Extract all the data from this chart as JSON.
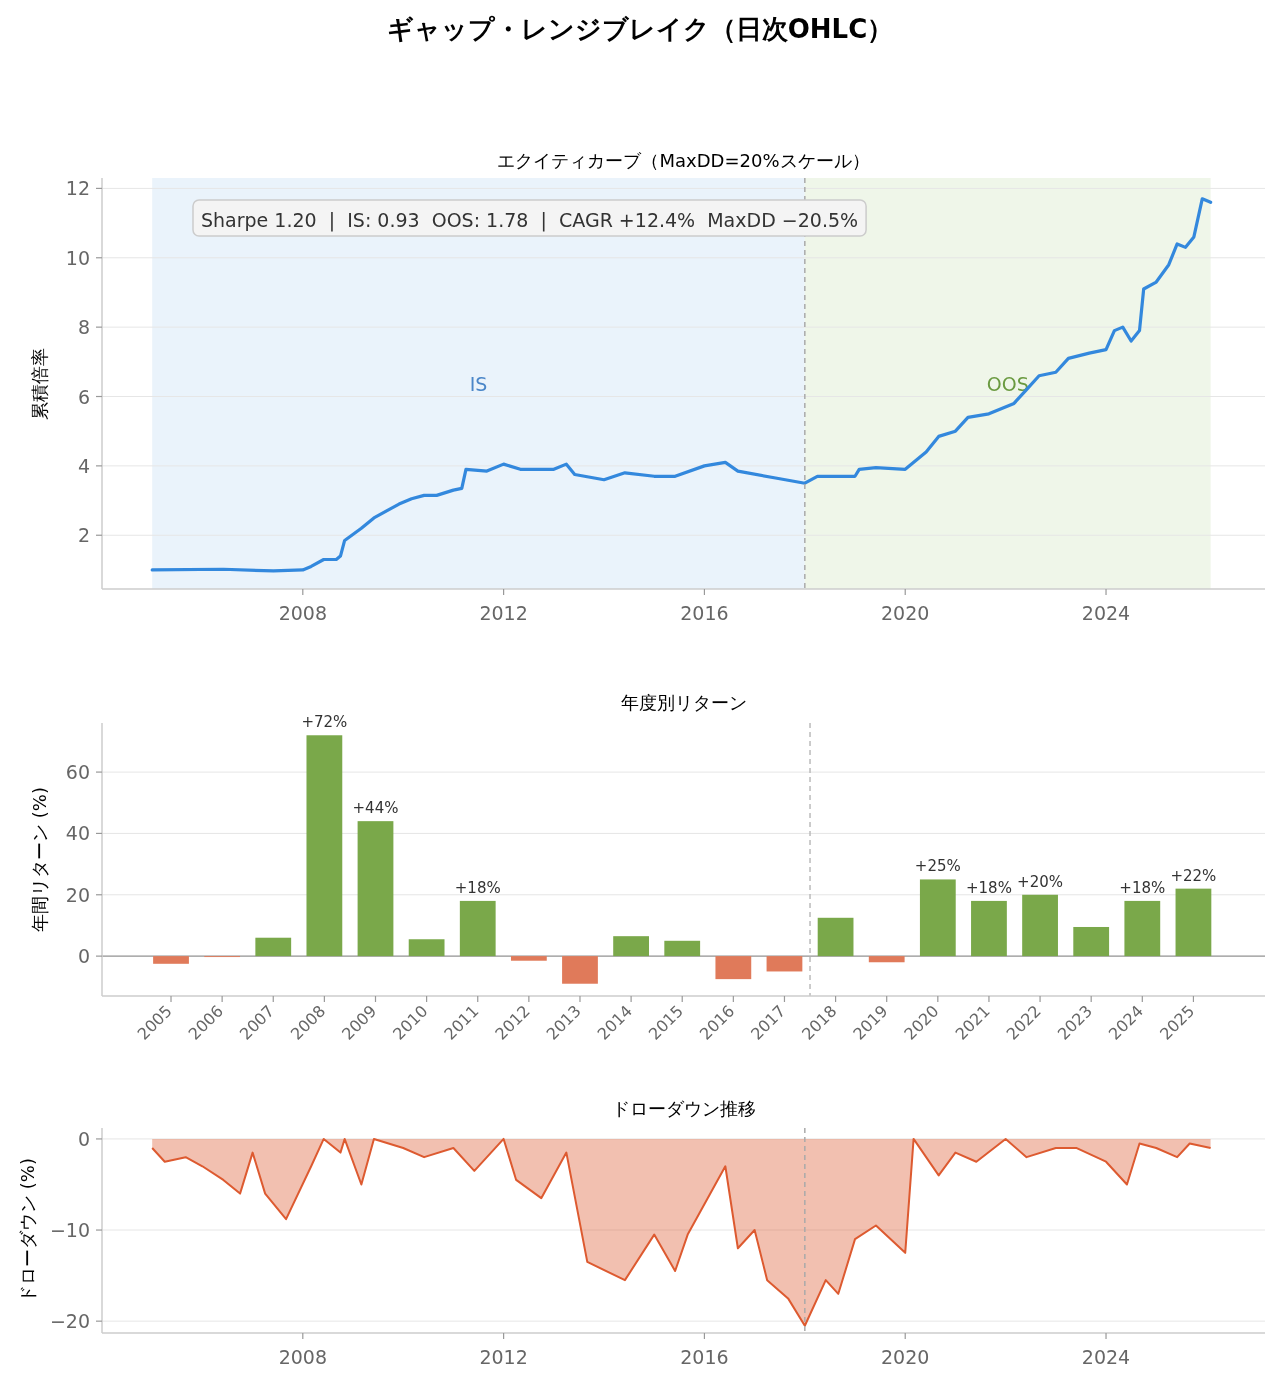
{
  "chart_data": [
    {
      "type": "line",
      "title": "ギャップ・レンジブレイク（日次OHLC）",
      "subtitle": "エクイティカーブ（MaxDD=20%スケール）",
      "ylabel": "累積倍率",
      "x": [
        "2005-01",
        "2006-06",
        "2007-06",
        "2008-01",
        "2008-03",
        "2008-06",
        "2008-09",
        "2008-10",
        "2008-11",
        "2009-03",
        "2009-06",
        "2009-12",
        "2010-03",
        "2010-06",
        "2010-09",
        "2011-01",
        "2011-03",
        "2011-04",
        "2011-09",
        "2012-01",
        "2012-05",
        "2013-01",
        "2013-04",
        "2013-06",
        "2014-01",
        "2014-06",
        "2015-01",
        "2015-06",
        "2016-01",
        "2016-06",
        "2016-09",
        "2017-06",
        "2018-01",
        "2018-04",
        "2018-09",
        "2019-01",
        "2019-02",
        "2019-06",
        "2020-01",
        "2020-06",
        "2020-09",
        "2021-01",
        "2021-04",
        "2021-09",
        "2022-03",
        "2022-06",
        "2022-09",
        "2023-01",
        "2023-04",
        "2023-09",
        "2024-01",
        "2024-03",
        "2024-05",
        "2024-07",
        "2024-09",
        "2024-10",
        "2025-01",
        "2025-04",
        "2025-06",
        "2025-08",
        "2025-10",
        "2025-12",
        "2026-02"
      ],
      "values": [
        1.0,
        1.02,
        0.97,
        1.0,
        1.1,
        1.3,
        1.3,
        1.4,
        1.85,
        2.2,
        2.5,
        2.9,
        3.05,
        3.15,
        3.15,
        3.3,
        3.35,
        3.9,
        3.85,
        4.05,
        3.9,
        3.9,
        4.05,
        3.75,
        3.6,
        3.8,
        3.7,
        3.7,
        4.0,
        4.1,
        3.85,
        3.65,
        3.5,
        3.7,
        3.7,
        3.7,
        3.9,
        3.95,
        3.9,
        4.4,
        4.85,
        5.0,
        5.4,
        5.5,
        5.8,
        6.2,
        6.6,
        6.7,
        7.1,
        7.25,
        7.35,
        7.9,
        8.0,
        7.6,
        7.9,
        9.1,
        9.3,
        9.8,
        10.4,
        10.3,
        10.6,
        11.7,
        11.6
      ],
      "color": "#3388dd",
      "xlim": [
        "2004-01",
        "2027-03"
      ],
      "ylim": [
        0.45,
        12.3
      ],
      "xticks": [
        "2008",
        "2012",
        "2016",
        "2020",
        "2024"
      ],
      "yticks": [
        2,
        4,
        6,
        8,
        10,
        12
      ],
      "grid": "y",
      "bands": [
        {
          "axis": "x",
          "from": "2005-01",
          "to": "2018-01",
          "label": "IS",
          "color": "#eaf3fb"
        },
        {
          "axis": "x",
          "from": "2018-01",
          "to": "2026-02",
          "label": "OOS",
          "color": "#eff6e9"
        }
      ],
      "ref_lines": [
        {
          "axis": "x",
          "value": "2018-01",
          "color": "#aaaaaa",
          "line_style": "dashed"
        }
      ],
      "annotations": [
        "Sharpe 1.20  |  IS: 0.93  OOS: 1.78  |  CAGR +12.4%  MaxDD −20.5%"
      ]
    },
    {
      "type": "bar",
      "title": "年度別リターン",
      "ylabel": "年間リターン (%)",
      "x": [
        2005,
        2006,
        2007,
        2008,
        2009,
        2010,
        2011,
        2012,
        2013,
        2014,
        2015,
        2016,
        2017,
        2018,
        2019,
        2020,
        2021,
        2022,
        2023,
        2024,
        2025
      ],
      "xlim": [
        2003.65,
        2026.4
      ],
      "xticks": [
        2005,
        2006,
        2007,
        2008,
        2009,
        2010,
        2011,
        2012,
        2013,
        2014,
        2015,
        2016,
        2017,
        2018,
        2019,
        2020,
        2021,
        2022,
        2023,
        2024,
        2025
      ],
      "values": [
        -2.5,
        -0.3,
        6,
        72,
        44,
        5.5,
        18,
        -1.5,
        -9,
        6.5,
        5,
        -7.5,
        -5,
        12.5,
        -2,
        25,
        18,
        20,
        9.5,
        18,
        22
      ],
      "colors": [
        "#e07a5a",
        "#e07a5a",
        "#7aa84a",
        "#7aa84a",
        "#7aa84a",
        "#7aa84a",
        "#7aa84a",
        "#e07a5a",
        "#e07a5a",
        "#7aa84a",
        "#7aa84a",
        "#e07a5a",
        "#e07a5a",
        "#7aa84a",
        "#e07a5a",
        "#7aa84a",
        "#7aa84a",
        "#7aa84a",
        "#7aa84a",
        "#7aa84a",
        "#7aa84a"
      ],
      "value_labels": [
        null,
        null,
        null,
        "+72%",
        "+44%",
        null,
        "+18%",
        null,
        null,
        null,
        null,
        null,
        null,
        null,
        null,
        "+25%",
        "+18%",
        "+20%",
        null,
        "+18%",
        "+22%"
      ],
      "ylim": [
        -13,
        76
      ],
      "yticks": [
        0,
        20,
        40,
        60
      ],
      "grid": "y",
      "ref_lines": [
        {
          "axis": "x",
          "value": 2017.5,
          "color": "#bbbbbb",
          "line_style": "dashed"
        }
      ]
    },
    {
      "type": "area",
      "title": "ドローダウン推移",
      "ylabel": "ドローダウン (%)",
      "x": [
        "2005-01",
        "2005-04",
        "2005-09",
        "2006-01",
        "2006-06",
        "2006-10",
        "2007-01",
        "2007-04",
        "2007-09",
        "2008-03",
        "2008-06",
        "2008-10",
        "2008-11",
        "2009-03",
        "2009-06",
        "2010-01",
        "2010-06",
        "2011-01",
        "2011-06",
        "2012-01",
        "2012-04",
        "2012-10",
        "2013-04",
        "2013-09",
        "2014-06",
        "2015-01",
        "2015-06",
        "2015-09",
        "2016-06",
        "2016-09",
        "2017-01",
        "2017-04",
        "2017-09",
        "2018-01",
        "2018-06",
        "2018-09",
        "2019-01",
        "2019-06",
        "2020-01",
        "2020-03",
        "2020-09",
        "2021-01",
        "2021-06",
        "2022-01",
        "2022-06",
        "2023-01",
        "2023-06",
        "2024-01",
        "2024-06",
        "2024-09",
        "2025-01",
        "2025-06",
        "2025-09",
        "2026-02"
      ],
      "values": [
        -1,
        -2.5,
        -2,
        -3,
        -4.5,
        -6,
        -1.5,
        -6,
        -8.8,
        -3,
        0,
        -1.5,
        0,
        -5,
        0,
        -1,
        -2,
        -1,
        -3.5,
        0,
        -4.5,
        -6.5,
        -1.5,
        -13.5,
        -15.5,
        -10.5,
        -14.5,
        -10.5,
        -3,
        -12,
        -10,
        -15.5,
        -17.5,
        -20.5,
        -15.5,
        -17,
        -11,
        -9.5,
        -12.5,
        0,
        -4,
        -1.5,
        -2.5,
        0,
        -2,
        -1,
        -1,
        -2.5,
        -5,
        -0.5,
        -1,
        -2,
        -0.5,
        -1
      ],
      "color": "#dd5a30",
      "xlim": [
        "2004-01",
        "2027-03"
      ],
      "ylim": [
        -21.3,
        1.2
      ],
      "xticks": [
        "2008",
        "2012",
        "2016",
        "2020",
        "2024"
      ],
      "yticks": [
        {
          "value": -20,
          "label": "−20"
        },
        {
          "value": -10,
          "label": "−10"
        },
        0
      ],
      "grid": "y",
      "ref_lines": [
        {
          "axis": "x",
          "value": "2018-01",
          "color": "#aaaaaa",
          "line_style": "dashed"
        }
      ]
    }
  ]
}
